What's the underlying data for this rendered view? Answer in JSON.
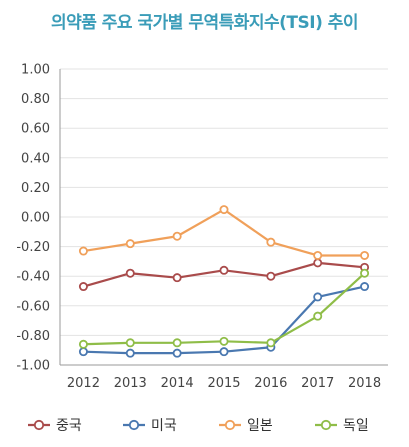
{
  "chart_data": {
    "type": "line",
    "title": "의약품 주요 국가별 무역특화지수(TSI) 추이",
    "categories": [
      "2012",
      "2013",
      "2014",
      "2015",
      "2016",
      "2017",
      "2018"
    ],
    "ylim": [
      -1.0,
      1.0
    ],
    "ytick_labels": [
      "1.00",
      "0.80",
      "0.60",
      "0.40",
      "0.20",
      "0.00",
      "-0.20",
      "-0.40",
      "-0.60",
      "-0.80",
      "-1.00"
    ],
    "grid": true,
    "legend_position": "bottom",
    "series": [
      {
        "name": "중국",
        "color": "#a94b4b",
        "values": [
          -0.47,
          -0.38,
          -0.41,
          -0.36,
          -0.4,
          -0.31,
          -0.34
        ]
      },
      {
        "name": "미국",
        "color": "#4a78b0",
        "values": [
          -0.91,
          -0.92,
          -0.92,
          -0.91,
          -0.88,
          -0.54,
          -0.47
        ]
      },
      {
        "name": "일본",
        "color": "#f0a05a",
        "values": [
          -0.23,
          -0.18,
          -0.13,
          0.05,
          -0.17,
          -0.26,
          -0.26
        ]
      },
      {
        "name": "독일",
        "color": "#8fbd48",
        "values": [
          -0.86,
          -0.85,
          -0.85,
          -0.84,
          -0.85,
          -0.67,
          -0.38
        ]
      }
    ]
  }
}
